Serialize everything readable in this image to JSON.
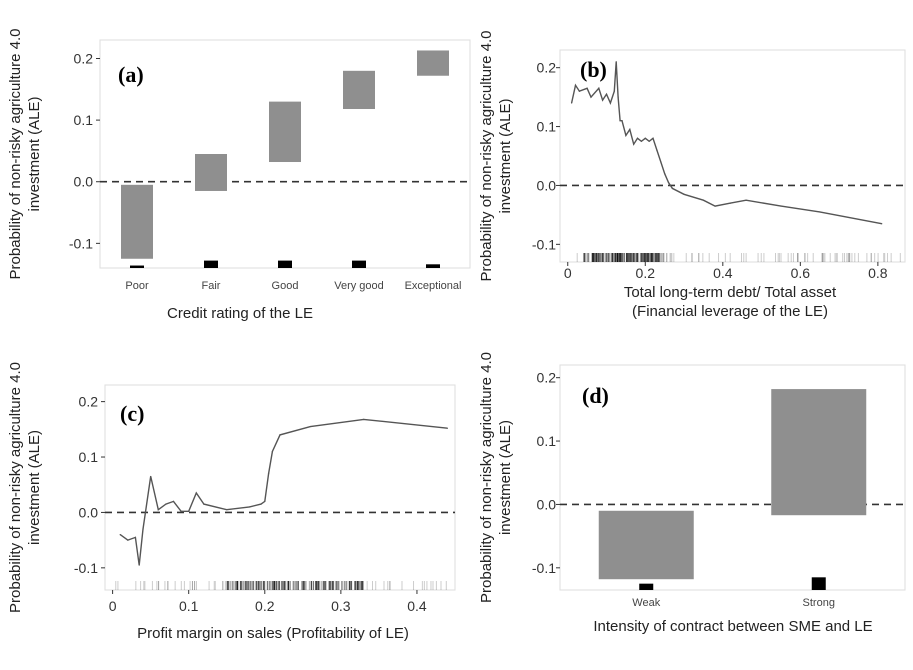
{
  "colors": {
    "bar": "#8f8f8f",
    "line": "#555555",
    "rug": "#000000",
    "zero": "#333333",
    "frame": "#dddddd"
  },
  "chart_data": [
    {
      "id": "a",
      "panel_label": "(a)",
      "type": "bar",
      "categories": [
        "Poor",
        "Fair",
        "Good",
        "Very good",
        "Exceptional"
      ],
      "bar_ranges": [
        [
          -0.125,
          -0.005
        ],
        [
          -0.015,
          0.045
        ],
        [
          0.032,
          0.13
        ],
        [
          0.118,
          0.18
        ],
        [
          0.172,
          0.213
        ]
      ],
      "rug_heights": [
        0.004,
        0.012,
        0.012,
        0.012,
        0.006
      ],
      "xlabel": "Credit rating of the LE",
      "ylabel": [
        "Probability of non-risky agriculture 4.0",
        "investment (ALE)"
      ],
      "ylim": [
        -0.14,
        0.23
      ],
      "yticks": [
        -0.1,
        0.0,
        0.1,
        0.2
      ],
      "ytick_labels": [
        "-0.1",
        "0.0",
        "0.1",
        "0.2"
      ],
      "zero_line": true
    },
    {
      "id": "b",
      "panel_label": "(b)",
      "type": "line",
      "x": [
        0.01,
        0.02,
        0.03,
        0.05,
        0.06,
        0.08,
        0.09,
        0.1,
        0.11,
        0.12,
        0.125,
        0.13,
        0.135,
        0.14,
        0.15,
        0.16,
        0.17,
        0.18,
        0.19,
        0.2,
        0.21,
        0.22,
        0.23,
        0.24,
        0.25,
        0.26,
        0.27,
        0.3,
        0.35,
        0.38,
        0.42,
        0.46,
        0.55,
        0.65,
        0.81
      ],
      "y": [
        0.14,
        0.17,
        0.16,
        0.165,
        0.15,
        0.165,
        0.145,
        0.155,
        0.14,
        0.16,
        0.21,
        0.15,
        0.11,
        0.11,
        0.085,
        0.095,
        0.07,
        0.08,
        0.075,
        0.08,
        0.075,
        0.08,
        0.06,
        0.04,
        0.02,
        0.005,
        -0.005,
        -0.015,
        -0.025,
        -0.035,
        -0.03,
        -0.025,
        -0.035,
        -0.045,
        -0.065
      ],
      "xlabel": [
        "Total long-term debt/ Total asset",
        "(Financial leverage of the LE)"
      ],
      "ylabel": [
        "Probability of non-risky agriculture 4.0",
        "investment (ALE)"
      ],
      "xlim": [
        -0.02,
        0.87
      ],
      "ylim": [
        -0.13,
        0.23
      ],
      "xticks": [
        0.0,
        0.2,
        0.4,
        0.6,
        0.8
      ],
      "xtick_labels": [
        "0",
        "0.2",
        "0.4",
        "0.6",
        "0.8"
      ],
      "yticks": [
        -0.1,
        0.0,
        0.1,
        0.2
      ],
      "ytick_labels": [
        "-0.1",
        "0.0",
        "0.1",
        "0.2"
      ],
      "rug_range": [
        0.01,
        0.86
      ],
      "rug_dense": [
        0.04,
        0.25
      ],
      "zero_line": true
    },
    {
      "id": "c",
      "panel_label": "(c)",
      "type": "line",
      "x": [
        0.01,
        0.02,
        0.03,
        0.035,
        0.04,
        0.05,
        0.06,
        0.07,
        0.08,
        0.09,
        0.1,
        0.11,
        0.12,
        0.15,
        0.18,
        0.195,
        0.2,
        0.205,
        0.21,
        0.22,
        0.26,
        0.33,
        0.44
      ],
      "y": [
        -0.04,
        -0.05,
        -0.045,
        -0.095,
        -0.03,
        0.065,
        0.005,
        0.015,
        0.02,
        0.002,
        0.002,
        0.035,
        0.015,
        0.005,
        0.01,
        0.015,
        0.02,
        0.07,
        0.11,
        0.14,
        0.155,
        0.168,
        0.152
      ],
      "xlabel": "Profit margin on sales (Profitability of LE)",
      "ylabel": [
        "Probability of non-risky agriculture 4.0",
        "investment (ALE)"
      ],
      "xlim": [
        -0.01,
        0.45
      ],
      "ylim": [
        -0.14,
        0.23
      ],
      "xticks": [
        0.0,
        0.1,
        0.2,
        0.3,
        0.4
      ],
      "xtick_labels": [
        "0",
        "0.1",
        "0.2",
        "0.3",
        "0.4"
      ],
      "yticks": [
        -0.1,
        0.0,
        0.1,
        0.2
      ],
      "ytick_labels": [
        "-0.1",
        "0.0",
        "0.1",
        "0.2"
      ],
      "rug_range": [
        0.0,
        0.44
      ],
      "rug_dense": [
        0.15,
        0.33
      ],
      "zero_line": true
    },
    {
      "id": "d",
      "panel_label": "(d)",
      "type": "bar",
      "categories": [
        "Weak",
        "Strong"
      ],
      "bar_ranges": [
        [
          -0.118,
          -0.01
        ],
        [
          -0.017,
          0.182
        ]
      ],
      "rug_heights": [
        0.01,
        0.02
      ],
      "xlabel": "Intensity of contract between SME and LE",
      "ylabel": [
        "Probability of non-risky agriculture 4.0",
        "investment (ALE)"
      ],
      "ylim": [
        -0.135,
        0.22
      ],
      "yticks": [
        -0.1,
        0.0,
        0.1,
        0.2
      ],
      "ytick_labels": [
        "-0.1",
        "0.0",
        "0.1",
        "0.2"
      ],
      "zero_line": true
    }
  ]
}
